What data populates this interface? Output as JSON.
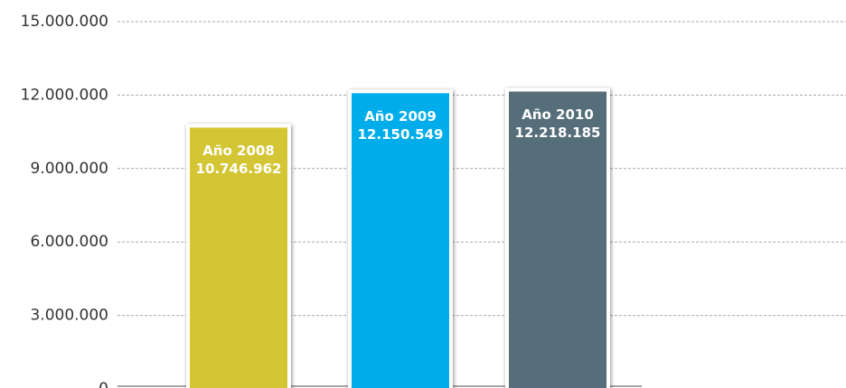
{
  "chart_data": {
    "type": "bar",
    "categories": [
      "Año 2008",
      "Año 2009",
      "Año 2010"
    ],
    "values": [
      10746962,
      12150549,
      12218185
    ],
    "value_labels": [
      "10.746.962",
      "12.150.549",
      "12.218.185"
    ],
    "colors": [
      "#d4c534",
      "#00adea",
      "#546e7a"
    ],
    "ylim": [
      0,
      15000000
    ],
    "yticks": [
      0,
      {
        "value": 3000000,
        "label": "3.000.000"
      },
      {
        "value": 6000000,
        "label": "6.000.000"
      },
      {
        "value": 9000000,
        "label": "9.000.000"
      },
      {
        "value": 12000000,
        "label": "12.000.000"
      },
      {
        "value": 15000000,
        "label": "15.000.000"
      }
    ],
    "grid": true
  }
}
